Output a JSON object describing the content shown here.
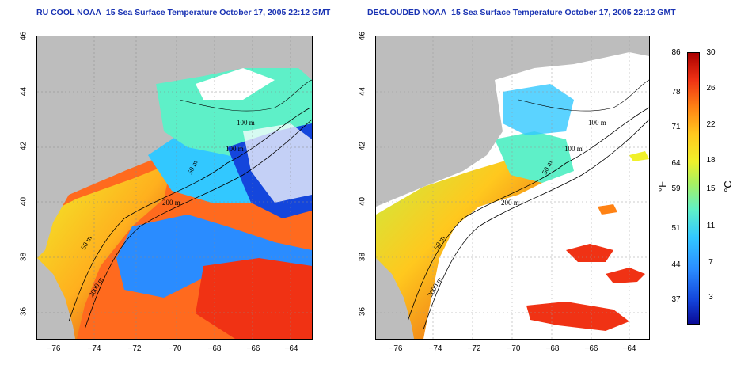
{
  "left_panel": {
    "title": "RU COOL NOAA–15 Sea Surface Temperature October 17, 2005 22:12 GMT"
  },
  "right_panel": {
    "title": "DECLOUDED NOAA–15 Sea Surface Temperature October 17, 2005 22:12 GMT"
  },
  "axes": {
    "lat_ticks": [
      "46",
      "44",
      "42",
      "40",
      "38",
      "36"
    ],
    "lon_ticks": [
      "−76",
      "−74",
      "−72",
      "−70",
      "−68",
      "−66",
      "−64"
    ]
  },
  "contours": {
    "left": [
      "100 m",
      "100 m",
      "50 m",
      "200 m",
      "50 m",
      "2000 m"
    ],
    "right": [
      "100 m",
      "100 m",
      "50 m",
      "200 m",
      "50 m",
      "2000 m"
    ]
  },
  "colorbar": {
    "fahrenheit_label": "°F",
    "celsius_label": "°C",
    "fahrenheit_ticks": [
      "86",
      "78",
      "71",
      "64",
      "59",
      "51",
      "44",
      "37"
    ],
    "celsius_ticks": [
      "30",
      "26",
      "22",
      "18",
      "15",
      "11",
      "7",
      "3"
    ],
    "colors": [
      "#0a0a96",
      "#1446dc",
      "#2a8cff",
      "#32c8ff",
      "#5ef0c8",
      "#a8f060",
      "#f0f02a",
      "#ffc81e",
      "#ff8214",
      "#f03214",
      "#aa0000"
    ]
  },
  "colors": {
    "land": "#bdbdbd",
    "cloud": "#ffffff",
    "title": "#1a33b3"
  }
}
